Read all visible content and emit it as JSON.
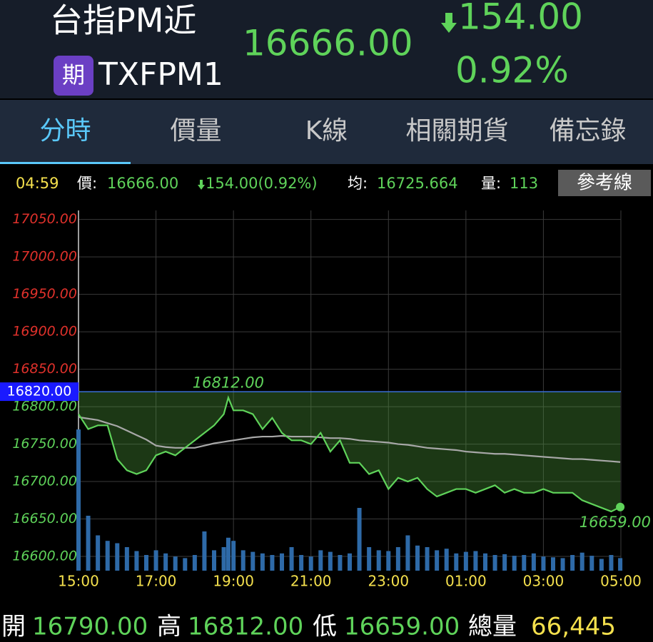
{
  "header": {
    "title": "台指PM近",
    "badge": "期",
    "code": "TXFPM1",
    "price": "16666.00",
    "change": "154.00",
    "change_pct": "0.92%"
  },
  "tabs": [
    "分時",
    "價量",
    "K線",
    "相關期貨",
    "備忘錄"
  ],
  "active_tab": 0,
  "info": {
    "time": "04:59",
    "price_label": "價:",
    "price": "16666.00",
    "change": "154.00(0.92%)",
    "avg_label": "均:",
    "avg": "16725.664",
    "volume_label": "量:",
    "volume": "113",
    "button": "參考線"
  },
  "chart_data": {
    "type": "line",
    "x": [
      0,
      15,
      30,
      45,
      60,
      75,
      90,
      105,
      120,
      135,
      150,
      165,
      180,
      195,
      210,
      225,
      232,
      240,
      255,
      270,
      285,
      300,
      315,
      330,
      345,
      360,
      375,
      390,
      405,
      420,
      435,
      450,
      465,
      480,
      495,
      510,
      525,
      540,
      555,
      570,
      585,
      600,
      615,
      630,
      645,
      660,
      675,
      690,
      705,
      720,
      735,
      750,
      765,
      780,
      795,
      810,
      825,
      839
    ],
    "xlim": [
      0,
      840
    ],
    "xticks": [
      {
        "value": 0,
        "label": "15:00"
      },
      {
        "value": 120,
        "label": "17:00"
      },
      {
        "value": 240,
        "label": "19:00"
      },
      {
        "value": 360,
        "label": "21:00"
      },
      {
        "value": 480,
        "label": "23:00"
      },
      {
        "value": 600,
        "label": "01:00"
      },
      {
        "value": 720,
        "label": "03:00"
      },
      {
        "value": 840,
        "label": "05:00"
      }
    ],
    "ylim": [
      16581,
      17062
    ],
    "yticks": [
      {
        "value": 17050,
        "label": "17050.00"
      },
      {
        "value": 17000,
        "label": "17000.00"
      },
      {
        "value": 16950,
        "label": "16950.00"
      },
      {
        "value": 16900,
        "label": "16900.00"
      },
      {
        "value": 16850,
        "label": "16850.00"
      },
      {
        "value": 16800,
        "label": "16800.00"
      },
      {
        "value": 16750,
        "label": "16750.00"
      },
      {
        "value": 16700,
        "label": "16700.00"
      },
      {
        "value": 16650,
        "label": "16650.00"
      },
      {
        "value": 16600,
        "label": "16600.00"
      }
    ],
    "grid": true,
    "reference": {
      "value": 16820,
      "label": "16820.00",
      "color": "#1a1aff"
    },
    "series": [
      {
        "color": "#5fd35a",
        "values": [
          16790,
          16770,
          16775,
          16775,
          16730,
          16715,
          16710,
          16715,
          16735,
          16740,
          16735,
          16745,
          16755,
          16765,
          16775,
          16790,
          16812,
          16795,
          16795,
          16790,
          16770,
          16785,
          16765,
          16755,
          16755,
          16750,
          16765,
          16740,
          16755,
          16725,
          16725,
          16710,
          16715,
          16690,
          16705,
          16700,
          16705,
          16690,
          16680,
          16685,
          16690,
          16690,
          16685,
          16690,
          16695,
          16685,
          16690,
          16685,
          16685,
          16690,
          16685,
          16685,
          16685,
          16675,
          16670,
          16665,
          16660,
          16666
        ]
      },
      {
        "color": "#a8a8a8",
        "values": [
          16786,
          16784,
          16782,
          16778,
          16774,
          16768,
          16762,
          16756,
          16748,
          16746,
          16745,
          16745,
          16745,
          16748,
          16751,
          16753,
          16754,
          16755,
          16757,
          16759,
          16760,
          16760,
          16761,
          16760,
          16760,
          16760,
          16759,
          16758,
          16758,
          16757,
          16755,
          16754,
          16753,
          16752,
          16750,
          16749,
          16747,
          16745,
          16744,
          16743,
          16742,
          16740,
          16739,
          16738,
          16737,
          16737,
          16736,
          16735,
          16734,
          16733,
          16732,
          16731,
          16730,
          16730,
          16729,
          16728,
          16727,
          16726
        ]
      }
    ],
    "volume": {
      "color": "#2e6aa8",
      "ylim": [
        0,
        2000
      ],
      "values": [
        1800,
        700,
        450,
        380,
        350,
        300,
        250,
        200,
        260,
        220,
        180,
        160,
        200,
        500,
        260,
        300,
        420,
        380,
        260,
        240,
        220,
        200,
        220,
        300,
        200,
        180,
        260,
        240,
        200,
        220,
        800,
        300,
        260,
        250,
        300,
        450,
        320,
        300,
        260,
        280,
        220,
        240,
        250,
        220,
        200,
        210,
        190,
        200,
        220,
        180,
        170,
        160,
        200,
        230,
        190,
        150,
        200,
        160
      ]
    },
    "annotations": [
      {
        "text": "16812.00",
        "x": 232
      },
      {
        "text": "16659.00",
        "x": 839
      }
    ]
  },
  "footer": {
    "open_label": "開",
    "open": "16790.00",
    "high_label": "高",
    "high": "16812.00",
    "low_label": "低",
    "low": "16659.00",
    "total_label": "總量",
    "total": "66,445"
  }
}
